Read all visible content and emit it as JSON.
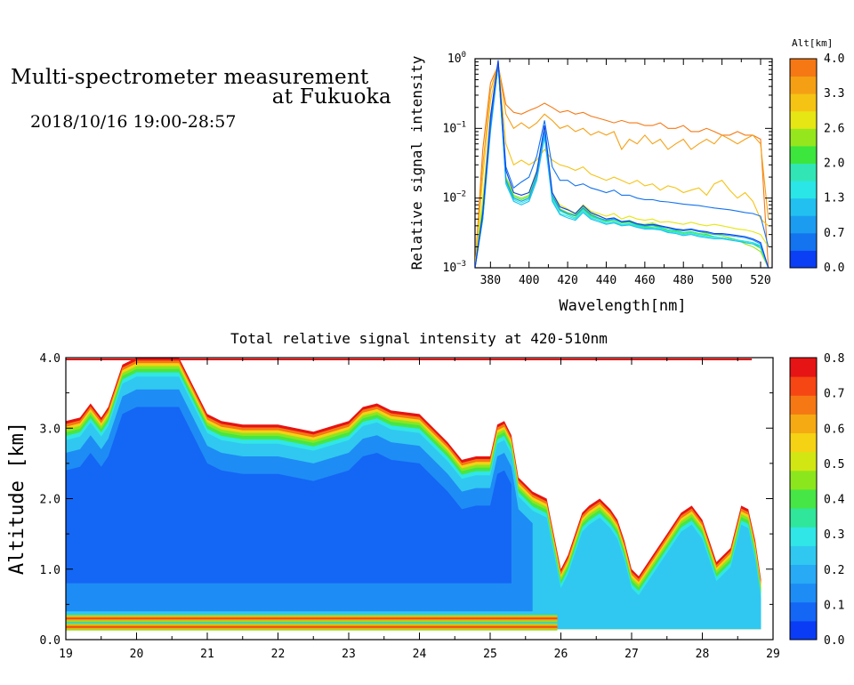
{
  "header": {
    "title_line1": "Multi-spectrometer measurement",
    "title_line2": "at Fukuoka",
    "datetime": "2018/10/16 19:00-28:57"
  },
  "colors": {
    "altitude_scale": [
      "#0b3ff5",
      "#1473ee",
      "#1b9cf0",
      "#22c0f0",
      "#2be6e6",
      "#31e6b4",
      "#3ce63c",
      "#96e61e",
      "#e6e614",
      "#f5c314",
      "#f5a014",
      "#f57814"
    ],
    "intensity_scale": [
      "#0a3cf5",
      "#1466f5",
      "#1e8cf5",
      "#28aaf5",
      "#30c8f0",
      "#30e6e6",
      "#30e69a",
      "#46e646",
      "#8ce61e",
      "#d2e614",
      "#f5d214",
      "#f5aa14",
      "#f57814",
      "#f54614",
      "#e61414"
    ]
  },
  "chart_data": [
    {
      "type": "line",
      "title": "",
      "xlabel": "Wavelength[nm]",
      "ylabel": "Relative signal intensity",
      "xlim": [
        372,
        526
      ],
      "ylim": [
        0.001,
        1
      ],
      "log_y": true,
      "grid": false,
      "x_ticks": [
        "380",
        "400",
        "420",
        "440",
        "460",
        "480",
        "500",
        "520"
      ],
      "y_ticks": [
        {
          "base": "10",
          "exp": "0",
          "value": 1
        },
        {
          "base": "10",
          "exp": "−1",
          "value": 0.1
        },
        {
          "base": "10",
          "exp": "−2",
          "value": 0.01
        },
        {
          "base": "10",
          "exp": "−3",
          "value": 0.001
        }
      ],
      "x": [
        372,
        376,
        380,
        384,
        388,
        392,
        396,
        400,
        404,
        408,
        412,
        416,
        420,
        424,
        428,
        432,
        436,
        440,
        444,
        448,
        452,
        456,
        460,
        464,
        468,
        472,
        476,
        480,
        484,
        488,
        492,
        496,
        500,
        504,
        508,
        512,
        516,
        520,
        524
      ],
      "legend": {
        "title": "Alt[km]",
        "labels": [
          "4.0",
          "3.3",
          "2.6",
          "2.0",
          "1.3",
          "0.7",
          "0.0"
        ],
        "placement": "right"
      },
      "series": [
        {
          "color": "#f57814",
          "values": [
            0.001,
            0.05,
            0.45,
            0.8,
            0.22,
            0.17,
            0.16,
            0.18,
            0.2,
            0.23,
            0.2,
            0.17,
            0.18,
            0.16,
            0.17,
            0.15,
            0.14,
            0.13,
            0.12,
            0.13,
            0.12,
            0.12,
            0.11,
            0.11,
            0.12,
            0.1,
            0.1,
            0.11,
            0.09,
            0.09,
            0.1,
            0.09,
            0.08,
            0.08,
            0.09,
            0.08,
            0.08,
            0.07,
            0.001
          ]
        },
        {
          "color": "#f5a014",
          "values": [
            0.001,
            0.03,
            0.35,
            0.85,
            0.16,
            0.1,
            0.12,
            0.1,
            0.12,
            0.16,
            0.13,
            0.1,
            0.11,
            0.09,
            0.1,
            0.08,
            0.09,
            0.08,
            0.09,
            0.05,
            0.07,
            0.06,
            0.08,
            0.06,
            0.07,
            0.05,
            0.06,
            0.07,
            0.05,
            0.06,
            0.07,
            0.06,
            0.08,
            0.07,
            0.06,
            0.07,
            0.08,
            0.06,
            0.005
          ]
        },
        {
          "color": "#f5c314",
          "values": [
            0.001,
            0.02,
            0.25,
            0.9,
            0.06,
            0.03,
            0.035,
            0.03,
            0.035,
            0.05,
            0.035,
            0.03,
            0.028,
            0.025,
            0.028,
            0.022,
            0.02,
            0.018,
            0.02,
            0.018,
            0.016,
            0.018,
            0.015,
            0.016,
            0.013,
            0.015,
            0.014,
            0.012,
            0.013,
            0.014,
            0.011,
            0.016,
            0.018,
            0.013,
            0.01,
            0.012,
            0.009,
            0.005,
            0.004
          ]
        },
        {
          "color": "#e6e614",
          "values": [
            0.001,
            0.01,
            0.15,
            0.88,
            0.02,
            0.012,
            0.011,
            0.012,
            0.025,
            0.1,
            0.012,
            0.008,
            0.007,
            0.006,
            0.008,
            0.0065,
            0.006,
            0.0055,
            0.006,
            0.005,
            0.0055,
            0.005,
            0.0048,
            0.005,
            0.0045,
            0.0046,
            0.0044,
            0.0042,
            0.0045,
            0.0042,
            0.004,
            0.0042,
            0.004,
            0.0038,
            0.0036,
            0.0035,
            0.0033,
            0.003,
            0.002
          ]
        },
        {
          "color": "#96e61e",
          "values": [
            0.001,
            0.008,
            0.12,
            0.85,
            0.02,
            0.011,
            0.01,
            0.011,
            0.022,
            0.09,
            0.011,
            0.007,
            0.0062,
            0.0058,
            0.0075,
            0.006,
            0.0055,
            0.005,
            0.0052,
            0.0046,
            0.0048,
            0.0043,
            0.0042,
            0.0044,
            0.004,
            0.0038,
            0.0036,
            0.0034,
            0.0036,
            0.0033,
            0.0031,
            0.003,
            0.0029,
            0.0027,
            0.0025,
            0.0022,
            0.002,
            0.0017,
            0.0009
          ]
        },
        {
          "color": "#3ce63c",
          "values": [
            0.001,
            0.007,
            0.11,
            0.84,
            0.019,
            0.0105,
            0.0095,
            0.0105,
            0.021,
            0.085,
            0.0105,
            0.0068,
            0.006,
            0.0055,
            0.007,
            0.0056,
            0.0051,
            0.0047,
            0.0049,
            0.0044,
            0.0045,
            0.0041,
            0.0039,
            0.004,
            0.0038,
            0.0035,
            0.0034,
            0.0032,
            0.0033,
            0.0031,
            0.003,
            0.0028,
            0.0027,
            0.0026,
            0.0025,
            0.0023,
            0.0022,
            0.0019,
            0.0009
          ]
        },
        {
          "color": "#31e6b4",
          "values": [
            0.001,
            0.006,
            0.1,
            0.83,
            0.018,
            0.01,
            0.009,
            0.01,
            0.02,
            0.08,
            0.01,
            0.0065,
            0.0058,
            0.0052,
            0.0068,
            0.0054,
            0.005,
            0.0045,
            0.0047,
            0.0042,
            0.0043,
            0.004,
            0.0038,
            0.0038,
            0.0037,
            0.0034,
            0.0033,
            0.0031,
            0.0032,
            0.003,
            0.0029,
            0.0028,
            0.0027,
            0.0026,
            0.0025,
            0.0024,
            0.0023,
            0.002,
            0.0009
          ]
        },
        {
          "color": "#2be6e6",
          "values": [
            0.001,
            0.006,
            0.1,
            0.82,
            0.017,
            0.0095,
            0.0085,
            0.0095,
            0.019,
            0.078,
            0.0095,
            0.006,
            0.0055,
            0.005,
            0.0065,
            0.0052,
            0.0048,
            0.0043,
            0.0045,
            0.0041,
            0.0042,
            0.0039,
            0.0037,
            0.0037,
            0.0036,
            0.0033,
            0.0032,
            0.003,
            0.0031,
            0.0029,
            0.0028,
            0.0027,
            0.0027,
            0.0026,
            0.0025,
            0.0024,
            0.0023,
            0.0021,
            0.0009
          ]
        },
        {
          "color": "#22c0f0",
          "values": [
            0.001,
            0.005,
            0.09,
            0.8,
            0.016,
            0.009,
            0.008,
            0.009,
            0.018,
            0.076,
            0.009,
            0.0058,
            0.0052,
            0.0048,
            0.0062,
            0.005,
            0.0046,
            0.0042,
            0.0044,
            0.004,
            0.0041,
            0.0038,
            0.0036,
            0.0036,
            0.0035,
            0.0032,
            0.0031,
            0.0029,
            0.003,
            0.0028,
            0.0027,
            0.0026,
            0.0026,
            0.0025,
            0.0024,
            0.0023,
            0.0022,
            0.002,
            0.0009
          ]
        },
        {
          "color": "#1b9cf0",
          "values": [
            0.001,
            0.005,
            0.1,
            0.85,
            0.018,
            0.01,
            0.009,
            0.01,
            0.021,
            0.09,
            0.011,
            0.0068,
            0.006,
            0.0056,
            0.0072,
            0.0058,
            0.0052,
            0.0048,
            0.005,
            0.0045,
            0.0046,
            0.0042,
            0.004,
            0.0041,
            0.0039,
            0.0037,
            0.0035,
            0.0034,
            0.0035,
            0.0033,
            0.0032,
            0.003,
            0.003,
            0.0029,
            0.0028,
            0.0027,
            0.0025,
            0.0022,
            0.001
          ]
        },
        {
          "color": "#1473ee",
          "values": [
            0.001,
            0.006,
            0.12,
            0.9,
            0.028,
            0.014,
            0.017,
            0.02,
            0.04,
            0.13,
            0.028,
            0.018,
            0.018,
            0.015,
            0.016,
            0.014,
            0.013,
            0.012,
            0.013,
            0.011,
            0.011,
            0.01,
            0.0095,
            0.0095,
            0.009,
            0.0088,
            0.0085,
            0.0082,
            0.008,
            0.0078,
            0.0075,
            0.0072,
            0.007,
            0.0068,
            0.0065,
            0.0062,
            0.006,
            0.0055,
            0.002
          ]
        },
        {
          "color": "#0b3ff5",
          "values": [
            0.001,
            0.006,
            0.15,
            0.95,
            0.025,
            0.012,
            0.011,
            0.012,
            0.024,
            0.11,
            0.012,
            0.0075,
            0.0068,
            0.006,
            0.0078,
            0.0062,
            0.0056,
            0.005,
            0.0052,
            0.0046,
            0.0047,
            0.0043,
            0.0041,
            0.0042,
            0.004,
            0.0038,
            0.0036,
            0.0035,
            0.0036,
            0.0034,
            0.0033,
            0.0031,
            0.0031,
            0.003,
            0.0029,
            0.0028,
            0.0026,
            0.0023,
            0.001
          ]
        }
      ]
    },
    {
      "type": "heatmap",
      "title": "Total relative signal intensity at 420-510nm",
      "xlabel": "",
      "ylabel": "Altitude [km]",
      "xlim": [
        19,
        29
      ],
      "ylim": [
        0,
        4
      ],
      "x_ticks": [
        "19",
        "20",
        "21",
        "22",
        "23",
        "24",
        "25",
        "26",
        "27",
        "28",
        "29"
      ],
      "y_ticks": [
        "0.0",
        "1.0",
        "2.0",
        "3.0",
        "4.0"
      ],
      "colorbar": {
        "range": [
          0,
          0.8
        ],
        "labels": [
          "0.8",
          "0.7",
          "0.6",
          "0.5",
          "0.4",
          "0.3",
          "0.2",
          "0.1",
          "0.0"
        ],
        "placement": "right"
      },
      "data_extent": {
        "time_end": 28.83,
        "alt_min": 0.15
      },
      "cloud_top_km": {
        "t": [
          19.0,
          19.2,
          19.35,
          19.5,
          19.6,
          19.8,
          20.0,
          20.2,
          20.4,
          20.6,
          20.8,
          21.0,
          21.2,
          21.5,
          22.0,
          22.5,
          23.0,
          23.2,
          23.4,
          23.6,
          24.0,
          24.2,
          24.4,
          24.6,
          24.8,
          25.0,
          25.1,
          25.2,
          25.3,
          25.4,
          25.5,
          25.6,
          25.8,
          25.9,
          26.0,
          26.1,
          26.2,
          26.3,
          26.4,
          26.55,
          26.7,
          26.8,
          26.9,
          27.0,
          27.1,
          27.3,
          27.5,
          27.7,
          27.85,
          28.0,
          28.1,
          28.2,
          28.4,
          28.55,
          28.65,
          28.75,
          28.83
        ],
        "top": [
          3.1,
          3.15,
          3.35,
          3.15,
          3.3,
          3.9,
          4.0,
          4.0,
          4.0,
          4.0,
          3.6,
          3.2,
          3.1,
          3.05,
          3.05,
          2.95,
          3.1,
          3.3,
          3.35,
          3.25,
          3.2,
          3.0,
          2.8,
          2.55,
          2.6,
          2.6,
          3.05,
          3.1,
          2.9,
          2.3,
          2.2,
          2.1,
          2.0,
          1.5,
          1.0,
          1.2,
          1.5,
          1.8,
          1.9,
          2.0,
          1.85,
          1.7,
          1.4,
          1.0,
          0.9,
          1.2,
          1.5,
          1.8,
          1.9,
          1.7,
          1.4,
          1.1,
          1.3,
          1.9,
          1.85,
          1.4,
          0.85
        ]
      },
      "low_bands_km": [
        {
          "alt": 0.3,
          "until": 25.95
        },
        {
          "alt": 0.18,
          "until": 25.95
        }
      ]
    }
  ]
}
